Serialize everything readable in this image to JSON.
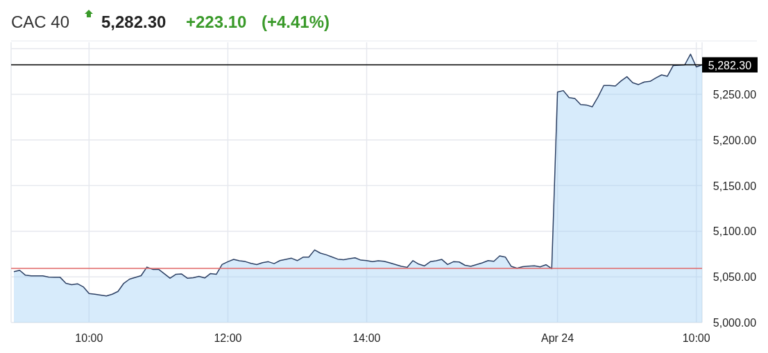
{
  "chart_data": {
    "type": "area",
    "title": "CAC 40",
    "annotations": [
      "5,282.30",
      "+223.10",
      "(+4.41%)"
    ],
    "categories": [
      null,
      null,
      null,
      null,
      null,
      null,
      null,
      null,
      null,
      null,
      null,
      null,
      null,
      "10:00",
      null,
      null,
      null,
      null,
      null,
      null,
      null,
      null,
      null,
      null,
      null,
      null,
      null,
      null,
      null,
      null,
      null,
      null,
      null,
      null,
      null,
      null,
      null,
      "12:00",
      null,
      null,
      null,
      null,
      null,
      null,
      null,
      null,
      null,
      null,
      null,
      null,
      null,
      null,
      null,
      null,
      null,
      null,
      null,
      null,
      null,
      null,
      null,
      "14:00",
      null,
      null,
      null,
      null,
      null,
      null,
      null,
      null,
      null,
      null,
      null,
      null,
      null,
      null,
      null,
      null,
      null,
      null,
      null,
      null,
      null,
      null,
      null,
      null,
      null,
      null,
      null,
      null,
      null,
      null,
      null,
      null,
      "Apr 24",
      null,
      null,
      null,
      null,
      null,
      null,
      null,
      null,
      null,
      null,
      null,
      null,
      null,
      null,
      null,
      null,
      null,
      null,
      null,
      null,
      null,
      null,
      null,
      "10:00",
      null
    ],
    "series": [
      {
        "color": "#2b3f63",
        "values": [
          5055.6,
          5057.2,
          5051.8,
          5051.1,
          5051.1,
          5051.1,
          5049.8,
          5049.6,
          5049.5,
          5042.9,
          5041.4,
          5042.4,
          5039.1,
          5031.7,
          5031.0,
          5030.0,
          5029.0,
          5031.0,
          5034.0,
          5042.9,
          5047.5,
          5049.4,
          5051.3,
          5060.7,
          5058.2,
          5058.4,
          5053.5,
          5048.5,
          5052.8,
          5053.1,
          5048.5,
          5049.0,
          5050.6,
          5048.8,
          5053.6,
          5052.8,
          5063.5,
          5066.6,
          5069.1,
          5067.6,
          5066.8,
          5064.8,
          5063.5,
          5065.5,
          5066.6,
          5064.5,
          5067.8,
          5069.1,
          5070.4,
          5067.8,
          5071.6,
          5071.6,
          5079.5,
          5076.0,
          5074.2,
          5071.8,
          5069.4,
          5068.8,
          5069.9,
          5070.9,
          5068.3,
          5067.8,
          5066.6,
          5067.6,
          5067.1,
          5065.3,
          5063.4,
          5061.5,
          5060.5,
          5067.8,
          5064.0,
          5062.0,
          5066.6,
          5067.6,
          5069.1,
          5063.5,
          5066.6,
          5066.3,
          5062.7,
          5061.5,
          5063.4,
          5065.3,
          5067.8,
          5067.1,
          5072.9,
          5071.6,
          5061.5,
          5059.5,
          5061.2,
          5061.7,
          5062.2,
          5061.0,
          5063.3,
          5058.9,
          5252.5,
          5254.1,
          5246.4,
          5245.4,
          5238.8,
          5238.3,
          5236.3,
          5247.0,
          5259.7,
          5259.7,
          5259.1,
          5264.7,
          5269.3,
          5262.7,
          5260.7,
          5263.5,
          5264.2,
          5268.0,
          5271.3,
          5269.8,
          5281.5,
          5281.9,
          5282.3,
          5294.0,
          5280.0,
          5282.3
        ]
      }
    ],
    "ylim": [
      5000,
      5307
    ],
    "yticks": [
      {
        "value": 5000,
        "label": "5,000.00"
      },
      {
        "value": 5050,
        "label": "5,050.00"
      },
      {
        "value": 5100,
        "label": "5,100.00"
      },
      {
        "value": 5150,
        "label": "5,150.00"
      },
      {
        "value": 5200,
        "label": "5,200.00"
      },
      {
        "value": 5250,
        "label": "5,250.00"
      },
      {
        "value": 5300,
        "label": null
      }
    ],
    "ref_lines": [
      {
        "axis": "y",
        "value": 5059.2,
        "color": "#e06666"
      },
      {
        "axis": "y",
        "value": 5282.3,
        "label": "5,282.30",
        "color": "#000000"
      }
    ],
    "grid": true
  }
}
